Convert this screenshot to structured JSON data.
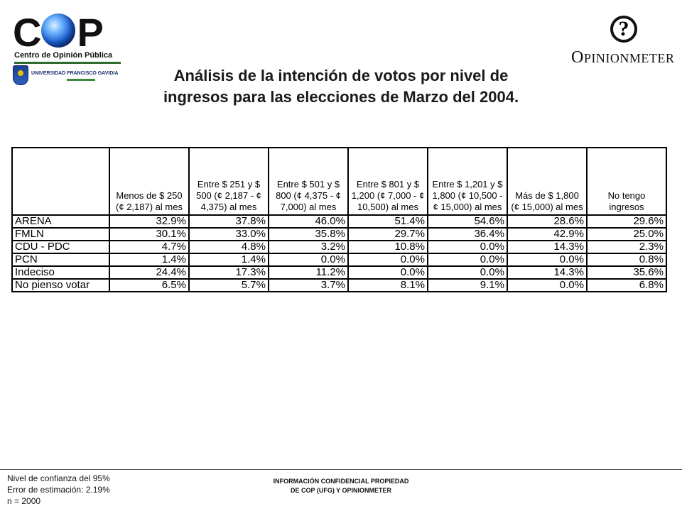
{
  "logos": {
    "cop": {
      "letters_left": "C",
      "letters_right": "P",
      "subtitle": "Centro de Opinión Pública",
      "university": "UNIVERSIDAD FRANCISCO GAVIDIA",
      "university_short": "UFG",
      "accent_color": "#1b5fd0"
    },
    "opinionmeter": {
      "mark": "?",
      "name_initial": "O",
      "name_rest": "PINIONMETER"
    }
  },
  "title": {
    "line1": "Análisis de la intención de votos por nivel de",
    "line2": "ingresos para las elecciones de Marzo del 2004."
  },
  "table": {
    "columns": [
      "",
      "Menos de $ 250 (¢ 2,187) al mes",
      "Entre $ 251 y $ 500 (¢ 2,187 - ¢ 4,375) al mes",
      "Entre $ 501 y $ 800 (¢ 4,375 - ¢ 7,000) al mes",
      "Entre $ 801 y $ 1,200 (¢ 7,000 - ¢ 10,500) al mes",
      "Entre $ 1,201 y $ 1,800 (¢ 10,500 - ¢ 15,000) al mes",
      "Más de $ 1,800 (¢ 15,000) al mes",
      "No tengo ingresos"
    ],
    "rows": [
      {
        "label": "ARENA",
        "values": [
          "32.9%",
          "37.8%",
          "46.0%",
          "51.4%",
          "54.6%",
          "28.6%",
          "29.6%"
        ]
      },
      {
        "label": "FMLN",
        "values": [
          "30.1%",
          "33.0%",
          "35.8%",
          "29.7%",
          "36.4%",
          "42.9%",
          "25.0%"
        ]
      },
      {
        "label": "CDU - PDC",
        "values": [
          "4.7%",
          "4.8%",
          "3.2%",
          "10.8%",
          "0.0%",
          "14.3%",
          "2.3%"
        ]
      },
      {
        "label": "PCN",
        "values": [
          "1.4%",
          "1.4%",
          "0.0%",
          "0.0%",
          "0.0%",
          "0.0%",
          "0.8%"
        ]
      },
      {
        "label": "Indeciso",
        "values": [
          "24.4%",
          "17.3%",
          "11.2%",
          "0.0%",
          "0.0%",
          "14.3%",
          "35.6%"
        ]
      },
      {
        "label": "No pienso votar",
        "values": [
          "6.5%",
          "5.7%",
          "3.7%",
          "8.1%",
          "9.1%",
          "0.0%",
          "6.8%"
        ]
      }
    ]
  },
  "footer": {
    "left": [
      "Nivel de confianza del 95%",
      "Error de estimación: 2.19%",
      "n = 2000"
    ],
    "center": [
      "INFORMACIÓN CONFIDENCIAL PROPIEDAD",
      "DE COP (UFG) Y OPINIONMETER"
    ]
  }
}
